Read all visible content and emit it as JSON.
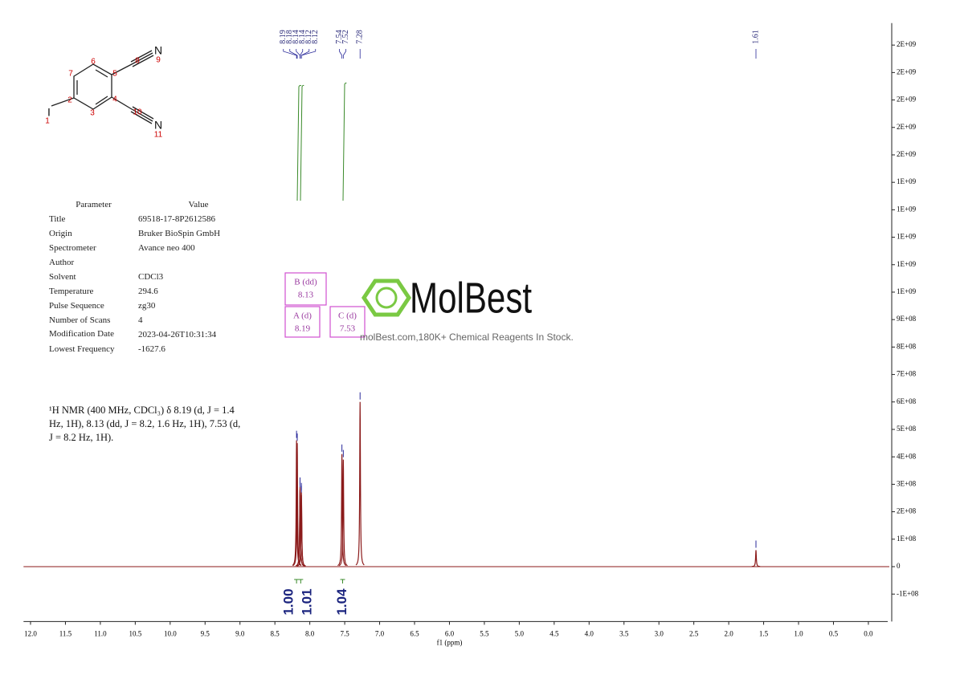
{
  "structure": {
    "atoms": [
      "I",
      "N",
      "N"
    ],
    "numbers": [
      "1",
      "2",
      "3",
      "4",
      "5",
      "6",
      "7",
      "8",
      "9",
      "10",
      "11"
    ]
  },
  "parameters": {
    "header": [
      "Parameter",
      "Value"
    ],
    "rows": [
      [
        "Title",
        "69518-17-8P2612586"
      ],
      [
        "Origin",
        "Bruker BioSpin GmbH"
      ],
      [
        "Spectrometer",
        "Avance neo 400"
      ],
      [
        "Author"
      ],
      [
        "Solvent",
        "CDCl3"
      ],
      [
        "Temperature",
        "294.6"
      ],
      [
        "Pulse Sequence",
        "zg30"
      ],
      [
        "Number of Scans",
        "4"
      ],
      [
        "Modification Date",
        "2023-04-26T10:31:34"
      ],
      [
        "Lowest Frequency",
        "-1627.6"
      ]
    ]
  },
  "description": "¹H NMR (400 MHz, CDCl₃) δ 8.19 (d, J = 1.4 Hz, 1H), 8.13 (dd, J = 8.2, 1.6 Hz, 1H), 7.53 (d, J = 8.2 Hz, 1H).",
  "watermark": {
    "brand": "MolBest",
    "tagline": "molBest.com,180K+ Chemical Reagents In Stock."
  },
  "chart_data": {
    "type": "spectrum",
    "x_label": "f1 (ppm)",
    "xlim": [
      12.1,
      -0.3
    ],
    "xticks": [
      {
        "value": 12,
        "label": "12.0"
      },
      11.5,
      {
        "value": 11,
        "label": "11.0"
      },
      10.5,
      {
        "value": 10,
        "label": "10.0"
      },
      9.5,
      {
        "value": 9,
        "label": "9.0"
      },
      8.5,
      {
        "value": 8,
        "label": "8.0"
      },
      7.5,
      {
        "value": 7,
        "label": "7.0"
      },
      6.5,
      {
        "value": 6,
        "label": "6.0"
      },
      5.5,
      {
        "value": 5,
        "label": "5.0"
      },
      4.5,
      {
        "value": 4,
        "label": "4.0"
      },
      3.5,
      {
        "value": 3,
        "label": "3.0"
      },
      2.5,
      {
        "value": 2,
        "label": "2.0"
      },
      1.5,
      {
        "value": 1,
        "label": "1.0"
      },
      0.5,
      {
        "value": 0,
        "label": "0.0"
      }
    ],
    "ylim": [
      -200000000,
      1980000000
    ],
    "yticks": [
      {
        "value": 1900000000,
        "label": "2E+09"
      },
      {
        "value": 1800000000,
        "label": "2E+09"
      },
      {
        "value": 1700000000,
        "label": "2E+09"
      },
      {
        "value": 1600000000,
        "label": "2E+09"
      },
      {
        "value": 1500000000,
        "label": "2E+09"
      },
      {
        "value": 1400000000,
        "label": "1E+09"
      },
      {
        "value": 1300000000,
        "label": "1E+09"
      },
      {
        "value": 1200000000,
        "label": "1E+09"
      },
      {
        "value": 1100000000,
        "label": "1E+09"
      },
      {
        "value": 1000000000,
        "label": "1E+09"
      },
      {
        "value": 900000000,
        "label": "9E+08"
      },
      {
        "value": 800000000,
        "label": "8E+08"
      },
      {
        "value": 700000000,
        "label": "7E+08"
      },
      {
        "value": 600000000,
        "label": "6E+08"
      },
      {
        "value": 500000000,
        "label": "5E+08"
      },
      {
        "value": 400000000,
        "label": "4E+08"
      },
      {
        "value": 300000000,
        "label": "3E+08"
      },
      {
        "value": 200000000,
        "label": "2E+08"
      },
      {
        "value": 100000000,
        "label": "1E+08"
      },
      0,
      {
        "value": -100000000,
        "label": "-1E+08"
      }
    ],
    "color": "#8b1a1a",
    "peaks": {
      "shifts": [
        8.19,
        8.18,
        8.14,
        8.14,
        8.12,
        8.12,
        7.54,
        7.52,
        7.28,
        1.61
      ],
      "values": [
        460000000,
        450000000,
        290000000,
        280000000,
        260000000,
        270000000,
        410000000,
        390000000,
        600000000,
        60000000
      ]
    },
    "multiplets": [
      {
        "name": "A (d)",
        "shift": 8.19,
        "integral": {
          "value": 1,
          "label": "1.00"
        }
      },
      {
        "name": "B (dd)",
        "shift": 8.13,
        "integral": 1.01
      },
      {
        "name": "C (d)",
        "shift": 7.53,
        "integral": 1.04
      }
    ]
  }
}
